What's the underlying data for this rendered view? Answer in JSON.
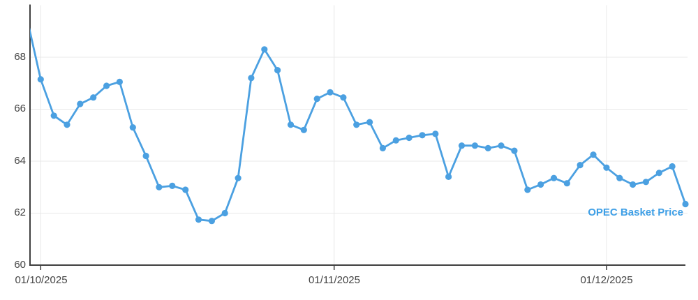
{
  "chart_data": {
    "type": "line",
    "title": "",
    "xlabel": "",
    "ylabel": "",
    "ylim": [
      60,
      70
    ],
    "grid": true,
    "legend_position": "end-of-line-label",
    "y_ticks": [
      60,
      62,
      64,
      66,
      68
    ],
    "x_ticks": [
      {
        "label": "01/10/2025",
        "point_index": 1
      },
      {
        "label": "01/11/2025",
        "point_index": 23.3
      },
      {
        "label": "01/12/2025",
        "point_index": 44
      }
    ],
    "series": [
      {
        "name": "OPEC Basket Price",
        "color": "#4BA0E1",
        "lead_in_clipped": true,
        "values": [
          69.4,
          67.15,
          65.75,
          65.4,
          66.2,
          66.45,
          66.9,
          67.05,
          65.3,
          64.2,
          63.0,
          63.05,
          62.9,
          61.75,
          61.7,
          62.0,
          63.35,
          67.2,
          68.3,
          67.5,
          65.4,
          65.2,
          66.4,
          66.65,
          66.45,
          65.4,
          65.5,
          64.5,
          64.8,
          64.9,
          65.0,
          65.05,
          63.4,
          64.6,
          64.6,
          64.5,
          64.6,
          64.4,
          62.9,
          63.1,
          63.35,
          63.15,
          63.85,
          64.25,
          63.75,
          63.35,
          63.1,
          63.2,
          63.55,
          63.8,
          62.35
        ]
      }
    ],
    "colors": {
      "line": "#4BA0E1",
      "marker": "#4BA0E1",
      "series_label": "#3E9FE6",
      "grid": "#E8E8E8",
      "axis": "#3F3F3F",
      "tick_text": "#434343"
    }
  }
}
